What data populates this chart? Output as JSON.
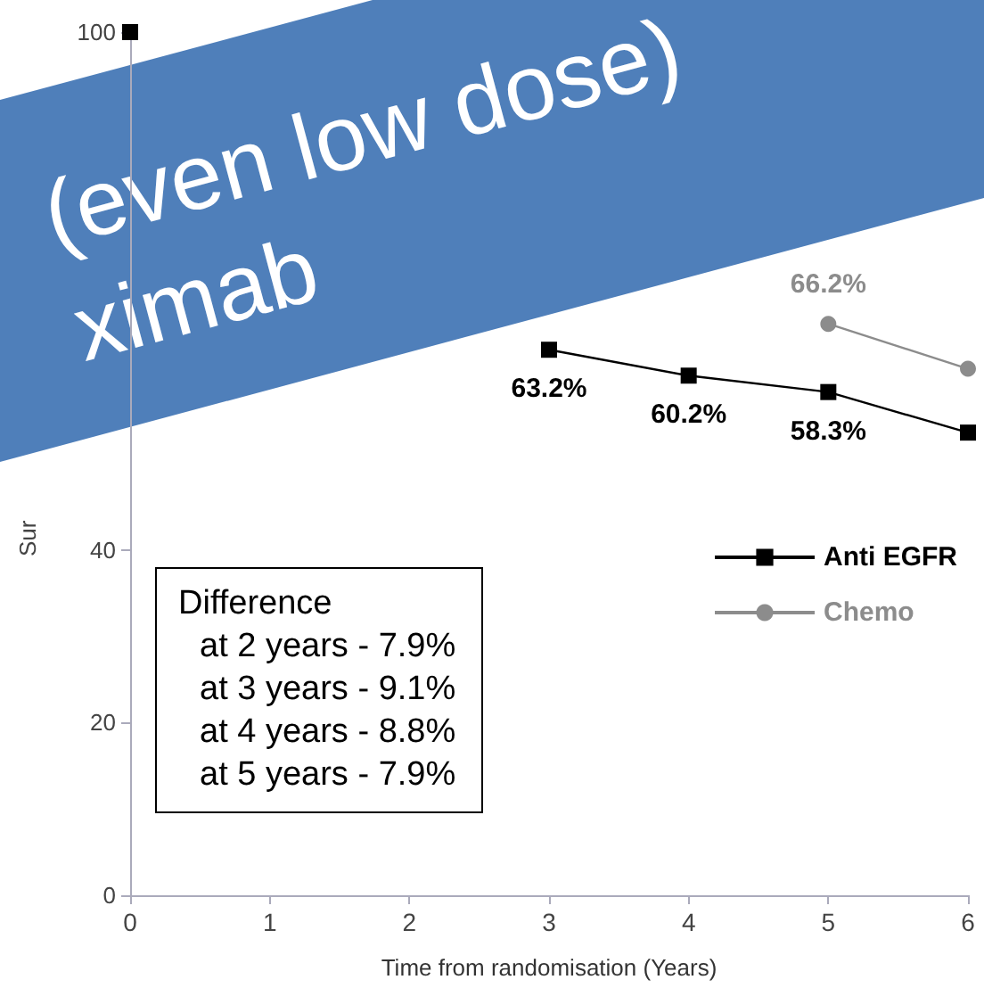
{
  "chart_data": {
    "type": "line",
    "title": "(even low dose)",
    "subtitle": "ximab",
    "xlabel": "Time from randomisation (Years)",
    "ylabel": "Sur",
    "x": [
      0,
      1,
      2,
      3,
      4,
      5,
      6
    ],
    "series": [
      {
        "name": "Anti EGFR",
        "color": "#000000",
        "marker": "square",
        "values": [
          100,
          null,
          null,
          63.2,
          60.2,
          58.3,
          53.6
        ],
        "value_labels": [
          null,
          null,
          null,
          "63.2%",
          "60.2%",
          "58.3%",
          null
        ]
      },
      {
        "name": "Chemo",
        "color": "#8c8c8c",
        "marker": "circle",
        "values": [
          null,
          null,
          null,
          null,
          null,
          66.2,
          61.0
        ],
        "value_labels": [
          null,
          null,
          null,
          null,
          null,
          "66.2%",
          null
        ]
      }
    ],
    "xlim": [
      0,
      6
    ],
    "xticks": [
      0,
      1,
      2,
      3,
      4,
      5,
      6
    ],
    "ylim": [
      0,
      100
    ],
    "yticks": [
      0,
      20,
      40,
      100
    ],
    "legend": "right",
    "grid": false,
    "annotations": [
      "Difference",
      "at 2 years - 7.9%",
      "at 3 years - 9.1%",
      "at 4 years - 8.8%",
      "at 5 years - 7.9%"
    ]
  }
}
